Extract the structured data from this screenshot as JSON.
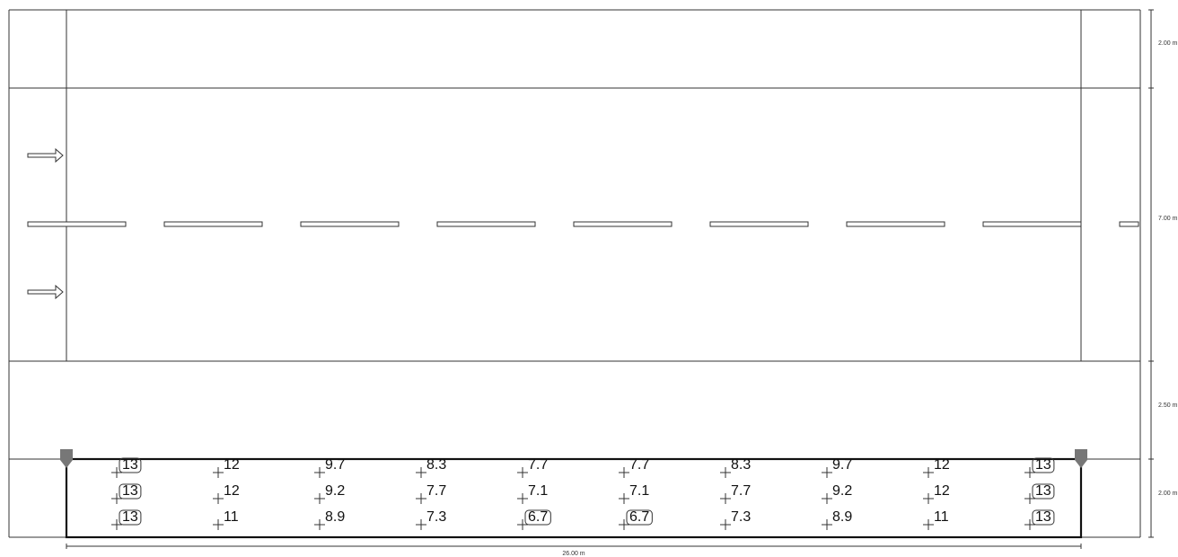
{
  "dimensions": {
    "right": [
      "2.00 m",
      "7.00 m",
      "2.50 m",
      "2.00 m"
    ],
    "bottom": "26.00 m"
  },
  "grid": {
    "rows": [
      [
        13,
        12,
        9.7,
        8.3,
        7.7,
        7.7,
        8.3,
        9.7,
        12,
        13
      ],
      [
        13,
        12,
        9.2,
        7.7,
        7.1,
        7.1,
        7.7,
        9.2,
        12,
        13
      ],
      [
        13,
        11,
        8.9,
        7.3,
        6.7,
        6.7,
        7.3,
        8.9,
        11,
        13
      ]
    ]
  }
}
